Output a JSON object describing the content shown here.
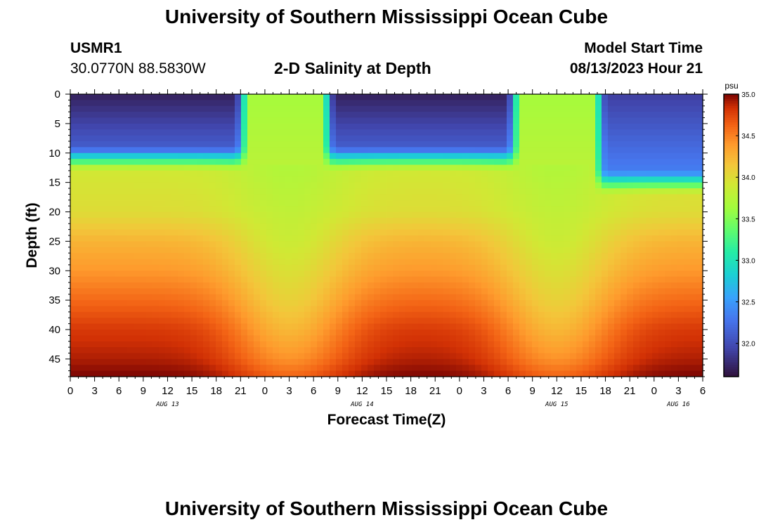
{
  "header": {
    "title": "University of Southern Mississippi Ocean Cube",
    "station_id": "USMR1",
    "coordinates": "30.0770N  88.5830W",
    "plot_title": "2-D Salinity at Depth",
    "start_label": "Model Start Time",
    "start_value": "08/13/2023 Hour 21"
  },
  "footer": {
    "title": "University of Southern Mississippi Ocean Cube"
  },
  "chart_data": {
    "type": "heatmap",
    "title": "2-D Salinity at Depth",
    "xlabel": "Forecast Time(Z)",
    "ylabel": "Depth (ft)",
    "x_unit": "hours after 00Z AUG 13",
    "x_range": [
      0,
      78
    ],
    "x_tick_step_hours": 3,
    "x_ticks": [
      "0",
      "3",
      "6",
      "9",
      "12",
      "15",
      "18",
      "21",
      "0",
      "3",
      "6",
      "9",
      "12",
      "15",
      "18",
      "21",
      "0",
      "3",
      "6",
      "9",
      "12",
      "15",
      "18",
      "21",
      "0",
      "3",
      "6"
    ],
    "day_labels": [
      {
        "label": "AUG 13",
        "hour": 12
      },
      {
        "label": "AUG 14",
        "hour": 36
      },
      {
        "label": "AUG 15",
        "hour": 60
      },
      {
        "label": "AUG 16",
        "hour": 75
      }
    ],
    "y_range": [
      0,
      48
    ],
    "y_ticks": [
      0,
      5,
      10,
      15,
      20,
      25,
      30,
      35,
      40,
      45
    ],
    "y_reversed": true,
    "colorbar": {
      "unit": "psu",
      "range": [
        31.6,
        35.0
      ],
      "labels": [
        "35.0",
        "34.5",
        "34.0",
        "33.5",
        "33.0",
        "32.5",
        "32.0"
      ],
      "colormap": "turbo"
    },
    "fresh_layer": {
      "description_hours": "low-salinity surface lens",
      "events": [
        {
          "start": 0,
          "end": 20.5,
          "bottom_depth_ft": 11,
          "min_psu": 31.7
        },
        {
          "start": 32.5,
          "end": 54,
          "bottom_depth_ft": 11,
          "min_psu": 31.7
        },
        {
          "start": 66,
          "end": 78,
          "bottom_depth_ft": 15,
          "min_psu": 31.9
        }
      ]
    },
    "salinity_profile": {
      "depth_ft": [
        12,
        20,
        25,
        30,
        35,
        40,
        45,
        48
      ],
      "psu_high_bottom": [
        33.9,
        34.0,
        34.25,
        34.4,
        34.6,
        34.8,
        34.9,
        35.0
      ],
      "psu_low_bottom": [
        33.7,
        33.8,
        33.85,
        33.95,
        34.05,
        34.2,
        34.4,
        34.6
      ]
    },
    "bottom_minima_hours": [
      27,
      60
    ],
    "grid": false
  }
}
